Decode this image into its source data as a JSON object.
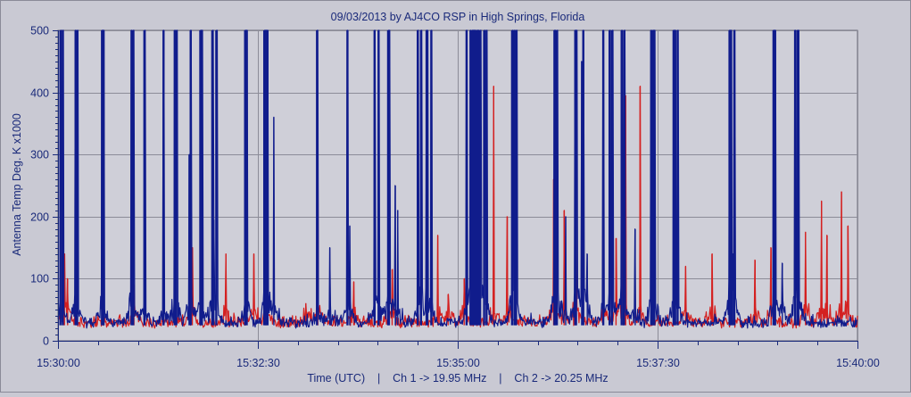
{
  "chart_data": {
    "type": "line",
    "title": "09/03/2013  by  AJ4CO RSP  in  High Springs, Florida",
    "ylabel": "Antenna Temp Deg. K x1000",
    "xlabel": "Time (UTC)    |    Ch 1 -> 19.95 MHz    |    Ch 2 -> 20.25 MHz",
    "ylim": [
      0,
      500
    ],
    "y_ticks": [
      "0",
      "100",
      "200",
      "300",
      "400",
      "500"
    ],
    "xlim_minutes": [
      0,
      10
    ],
    "x_ticks": [
      "15:30:00",
      "15:32:30",
      "15:35:00",
      "15:37:30",
      "15:40:00"
    ],
    "grid": true,
    "baseline": 25,
    "series": [
      {
        "name": "Ch 1 -> 19.95 MHz",
        "color": "#101c8c",
        "spikes": [
          [
            0.03,
            500
          ],
          [
            0.06,
            500
          ],
          [
            0.22,
            500
          ],
          [
            0.24,
            500
          ],
          [
            0.55,
            500
          ],
          [
            0.57,
            500
          ],
          [
            0.92,
            500
          ],
          [
            0.94,
            500
          ],
          [
            1.08,
            500
          ],
          [
            1.32,
            500
          ],
          [
            1.46,
            500
          ],
          [
            1.48,
            500
          ],
          [
            1.64,
            300
          ],
          [
            1.66,
            500
          ],
          [
            1.78,
            500
          ],
          [
            1.8,
            500
          ],
          [
            1.93,
            500
          ],
          [
            1.98,
            500
          ],
          [
            2.34,
            500
          ],
          [
            2.36,
            500
          ],
          [
            2.58,
            500
          ],
          [
            2.6,
            500
          ],
          [
            2.62,
            500
          ],
          [
            3.24,
            500
          ],
          [
            3.62,
            500
          ],
          [
            3.96,
            500
          ],
          [
            4.01,
            500
          ],
          [
            4.13,
            500
          ],
          [
            4.14,
            500
          ],
          [
            4.5,
            500
          ],
          [
            4.54,
            500
          ],
          [
            4.61,
            500
          ],
          [
            4.62,
            500
          ],
          [
            4.67,
            500
          ],
          [
            5.11,
            500
          ],
          [
            5.16,
            500
          ],
          [
            5.18,
            500
          ],
          [
            5.2,
            500
          ],
          [
            5.22,
            500
          ],
          [
            5.24,
            500
          ],
          [
            5.26,
            500
          ],
          [
            5.28,
            500
          ],
          [
            5.33,
            500
          ],
          [
            5.36,
            500
          ],
          [
            5.68,
            500
          ],
          [
            5.71,
            500
          ],
          [
            5.73,
            500
          ],
          [
            6.21,
            500
          ],
          [
            6.22,
            500
          ],
          [
            6.24,
            500
          ],
          [
            6.47,
            500
          ],
          [
            6.48,
            500
          ],
          [
            6.55,
            450
          ],
          [
            6.57,
            500
          ],
          [
            6.82,
            500
          ],
          [
            6.9,
            500
          ],
          [
            6.93,
            500
          ],
          [
            7.05,
            500
          ],
          [
            7.08,
            500
          ],
          [
            7.42,
            500
          ],
          [
            7.44,
            500
          ],
          [
            7.46,
            500
          ],
          [
            7.7,
            500
          ],
          [
            7.72,
            500
          ],
          [
            7.75,
            500
          ],
          [
            8.4,
            500
          ],
          [
            8.42,
            500
          ],
          [
            8.46,
            500
          ],
          [
            8.95,
            500
          ],
          [
            8.97,
            500
          ],
          [
            9.22,
            500
          ],
          [
            9.25,
            500
          ],
          [
            9.26,
            500
          ],
          [
            1.95,
            195
          ],
          [
            3.65,
            185
          ],
          [
            4.22,
            250
          ],
          [
            4.25,
            210
          ],
          [
            6.35,
            200
          ],
          [
            6.62,
            140
          ],
          [
            7.07,
            175
          ],
          [
            7.22,
            180
          ],
          [
            8.44,
            140
          ],
          [
            9.06,
            125
          ],
          [
            2.7,
            360
          ],
          [
            3.4,
            150
          ]
        ]
      },
      {
        "name": "Ch 2 -> 20.25 MHz",
        "color": "#d42020",
        "spikes": [
          [
            0.08,
            140
          ],
          [
            0.12,
            100
          ],
          [
            0.95,
            90
          ],
          [
            2.45,
            140
          ],
          [
            3.1,
            60
          ],
          [
            3.25,
            345
          ],
          [
            3.7,
            95
          ],
          [
            4.18,
            115
          ],
          [
            4.88,
            75
          ],
          [
            5.08,
            100
          ],
          [
            5.45,
            410
          ],
          [
            6.2,
            260
          ],
          [
            6.33,
            210
          ],
          [
            6.48,
            160
          ],
          [
            6.82,
            250
          ],
          [
            6.98,
            165
          ],
          [
            7.07,
            270
          ],
          [
            7.1,
            395
          ],
          [
            8.72,
            130
          ],
          [
            8.92,
            150
          ],
          [
            9.35,
            175
          ],
          [
            9.55,
            225
          ],
          [
            9.62,
            170
          ],
          [
            1.68,
            150
          ],
          [
            2.1,
            140
          ],
          [
            2.6,
            100
          ],
          [
            4.75,
            170
          ],
          [
            5.62,
            200
          ],
          [
            7.28,
            410
          ],
          [
            7.85,
            120
          ],
          [
            8.18,
            140
          ],
          [
            9.8,
            240
          ],
          [
            9.88,
            185
          ]
        ]
      }
    ]
  }
}
